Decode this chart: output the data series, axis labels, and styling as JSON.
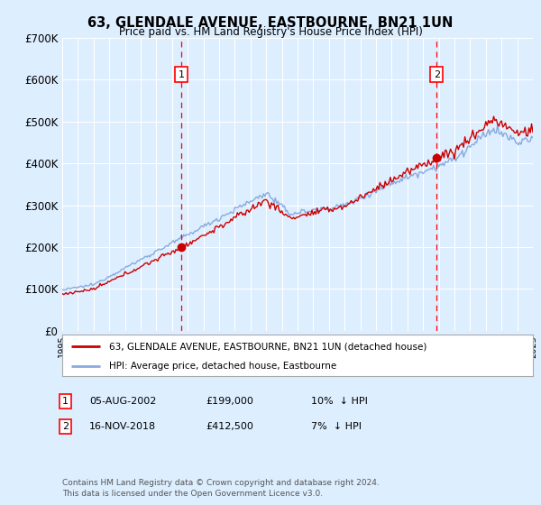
{
  "title": "63, GLENDALE AVENUE, EASTBOURNE, BN21 1UN",
  "subtitle": "Price paid vs. HM Land Registry's House Price Index (HPI)",
  "bg_color": "#ddeeff",
  "plot_bg_color": "#ddeeff",
  "grid_color": "#ffffff",
  "hpi_color": "#88aadd",
  "price_color": "#cc0000",
  "transaction1": {
    "date": "05-AUG-2002",
    "price": 199000,
    "x": 2002.58,
    "pct": "10%",
    "dir": "↓"
  },
  "transaction2": {
    "date": "16-NOV-2018",
    "price": 412500,
    "x": 2018.87,
    "pct": "7%",
    "dir": "↓"
  },
  "legend_entry1": "63, GLENDALE AVENUE, EASTBOURNE, BN21 1UN (detached house)",
  "legend_entry2": "HPI: Average price, detached house, Eastbourne",
  "footer1": "Contains HM Land Registry data © Crown copyright and database right 2024.",
  "footer2": "This data is licensed under the Open Government Licence v3.0.",
  "xmin": 1995,
  "xmax": 2025,
  "ymin": 0,
  "ymax": 700000,
  "yticks": [
    0,
    100000,
    200000,
    300000,
    400000,
    500000,
    600000,
    700000
  ],
  "ylabels": [
    "£0",
    "£100K",
    "£200K",
    "£300K",
    "£400K",
    "£500K",
    "£600K",
    "£700K"
  ]
}
